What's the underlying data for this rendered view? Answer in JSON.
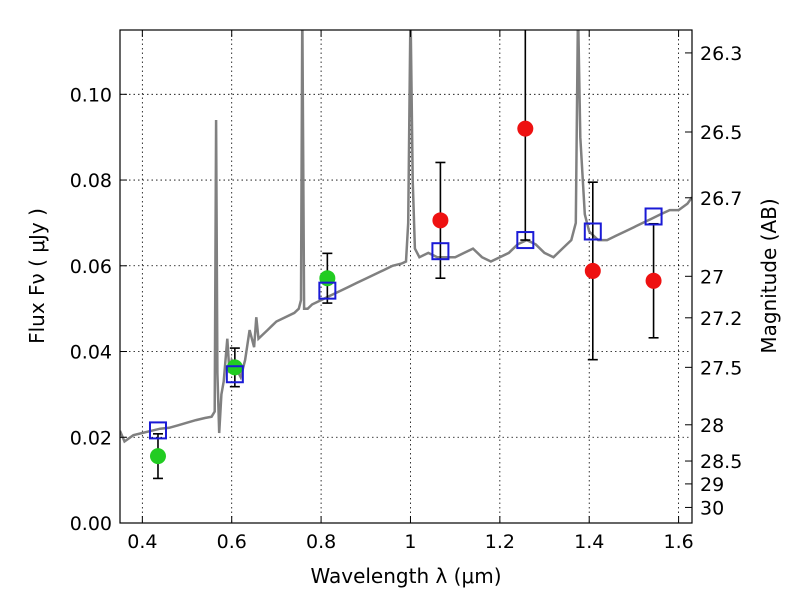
{
  "chart_data": {
    "type": "scatter",
    "xlabel": "Wavelength  λ (μm)",
    "ylabel": "Flux  Fν  ( μJy )",
    "y2label": "Magnitude (AB)",
    "xlim": [
      0.35,
      1.63
    ],
    "ylim": [
      0.0,
      0.115
    ],
    "grid": true,
    "x_ticks": [
      {
        "value": 0.4,
        "label": "0.4"
      },
      {
        "value": 0.6,
        "label": "0.6"
      },
      {
        "value": 0.8,
        "label": "0.8"
      },
      {
        "value": 1.0,
        "label": "1"
      },
      {
        "value": 1.2,
        "label": "1.2"
      },
      {
        "value": 1.4,
        "label": "1.4"
      },
      {
        "value": 1.6,
        "label": "1.6"
      }
    ],
    "y_ticks": [
      {
        "value": 0.0,
        "label": "0.00"
      },
      {
        "value": 0.02,
        "label": "0.02"
      },
      {
        "value": 0.04,
        "label": "0.04"
      },
      {
        "value": 0.06,
        "label": "0.06"
      },
      {
        "value": 0.08,
        "label": "0.08"
      },
      {
        "value": 0.1,
        "label": "0.10"
      }
    ],
    "y2_ticks": [
      {
        "mag": 26.3,
        "label": "26.3"
      },
      {
        "mag": 26.5,
        "label": "26.5"
      },
      {
        "mag": 26.7,
        "label": "26.7"
      },
      {
        "mag": 27.0,
        "label": "27"
      },
      {
        "mag": 27.2,
        "label": "27.2"
      },
      {
        "mag": 27.5,
        "label": "27.5"
      },
      {
        "mag": 28.0,
        "label": "28"
      },
      {
        "mag": 28.5,
        "label": "28.5"
      },
      {
        "mag": 29.0,
        "label": "29"
      },
      {
        "mag": 30.0,
        "label": "30"
      }
    ],
    "model_color": "#808080",
    "model_spectrum": [
      [
        0.35,
        0.0215
      ],
      [
        0.36,
        0.019
      ],
      [
        0.38,
        0.0205
      ],
      [
        0.4,
        0.021
      ],
      [
        0.42,
        0.0215
      ],
      [
        0.44,
        0.022
      ],
      [
        0.46,
        0.0222
      ],
      [
        0.48,
        0.0228
      ],
      [
        0.5,
        0.0234
      ],
      [
        0.52,
        0.024
      ],
      [
        0.54,
        0.0245
      ],
      [
        0.555,
        0.0248
      ],
      [
        0.562,
        0.026
      ],
      [
        0.565,
        0.094
      ],
      [
        0.568,
        0.035
      ],
      [
        0.572,
        0.021
      ],
      [
        0.577,
        0.03
      ],
      [
        0.582,
        0.033
      ],
      [
        0.59,
        0.043
      ],
      [
        0.595,
        0.035
      ],
      [
        0.6,
        0.038
      ],
      [
        0.61,
        0.036
      ],
      [
        0.62,
        0.034
      ],
      [
        0.63,
        0.038
      ],
      [
        0.64,
        0.045
      ],
      [
        0.65,
        0.041
      ],
      [
        0.655,
        0.048
      ],
      [
        0.66,
        0.043
      ],
      [
        0.67,
        0.044
      ],
      [
        0.68,
        0.045
      ],
      [
        0.69,
        0.046
      ],
      [
        0.7,
        0.047
      ],
      [
        0.72,
        0.048
      ],
      [
        0.74,
        0.049
      ],
      [
        0.75,
        0.05
      ],
      [
        0.755,
        0.052
      ],
      [
        0.758,
        0.12
      ],
      [
        0.762,
        0.05
      ],
      [
        0.77,
        0.05
      ],
      [
        0.78,
        0.051
      ],
      [
        0.8,
        0.052
      ],
      [
        0.82,
        0.053
      ],
      [
        0.84,
        0.054
      ],
      [
        0.86,
        0.055
      ],
      [
        0.88,
        0.056
      ],
      [
        0.9,
        0.057
      ],
      [
        0.92,
        0.058
      ],
      [
        0.94,
        0.059
      ],
      [
        0.96,
        0.06
      ],
      [
        0.98,
        0.0605
      ],
      [
        0.99,
        0.061
      ],
      [
        0.995,
        0.07
      ],
      [
        1.0,
        0.12
      ],
      [
        1.005,
        0.08
      ],
      [
        1.01,
        0.064
      ],
      [
        1.02,
        0.062
      ],
      [
        1.04,
        0.063
      ],
      [
        1.06,
        0.062
      ],
      [
        1.08,
        0.062
      ],
      [
        1.1,
        0.062
      ],
      [
        1.12,
        0.063
      ],
      [
        1.14,
        0.064
      ],
      [
        1.16,
        0.062
      ],
      [
        1.18,
        0.061
      ],
      [
        1.2,
        0.062
      ],
      [
        1.22,
        0.063
      ],
      [
        1.24,
        0.065
      ],
      [
        1.26,
        0.066
      ],
      [
        1.28,
        0.065
      ],
      [
        1.3,
        0.063
      ],
      [
        1.32,
        0.062
      ],
      [
        1.34,
        0.064
      ],
      [
        1.36,
        0.066
      ],
      [
        1.37,
        0.07
      ],
      [
        1.375,
        0.12
      ],
      [
        1.38,
        0.09
      ],
      [
        1.39,
        0.072
      ],
      [
        1.4,
        0.068
      ],
      [
        1.42,
        0.066
      ],
      [
        1.44,
        0.066
      ],
      [
        1.46,
        0.067
      ],
      [
        1.48,
        0.068
      ],
      [
        1.5,
        0.069
      ],
      [
        1.52,
        0.07
      ],
      [
        1.54,
        0.071
      ],
      [
        1.56,
        0.072
      ],
      [
        1.58,
        0.073
      ],
      [
        1.6,
        0.073
      ],
      [
        1.62,
        0.0745
      ],
      [
        1.63,
        0.076
      ]
    ],
    "series": [
      {
        "color": "#22cc22",
        "marker": "circle",
        "points": [
          {
            "x": 0.435,
            "y": 0.0156,
            "err_lo": 0.0052,
            "err_hi": 0.0052
          },
          {
            "x": 0.607,
            "y": 0.0363,
            "err_lo": 0.0045,
            "err_hi": 0.0045
          },
          {
            "x": 0.814,
            "y": 0.0571,
            "err_lo": 0.0058,
            "err_hi": 0.0058
          }
        ]
      },
      {
        "color": "#ee1111",
        "marker": "circle",
        "points": [
          {
            "x": 1.067,
            "y": 0.0706,
            "err_lo": 0.0135,
            "err_hi": 0.0135
          },
          {
            "x": 1.257,
            "y": 0.092,
            "err_lo": 0.026,
            "err_hi": 0.026
          },
          {
            "x": 1.408,
            "y": 0.0588,
            "err_lo": 0.0207,
            "err_hi": 0.0207
          },
          {
            "x": 1.544,
            "y": 0.0565,
            "err_lo": 0.0133,
            "err_hi": 0.0133
          }
        ]
      },
      {
        "color": "#1a1ad6",
        "marker": "open-square",
        "points": [
          {
            "x": 0.435,
            "y": 0.0216
          },
          {
            "x": 0.607,
            "y": 0.0347
          },
          {
            "x": 0.814,
            "y": 0.0542
          },
          {
            "x": 1.067,
            "y": 0.0634
          },
          {
            "x": 1.257,
            "y": 0.066
          },
          {
            "x": 1.408,
            "y": 0.068
          },
          {
            "x": 1.544,
            "y": 0.0715
          }
        ]
      }
    ]
  }
}
